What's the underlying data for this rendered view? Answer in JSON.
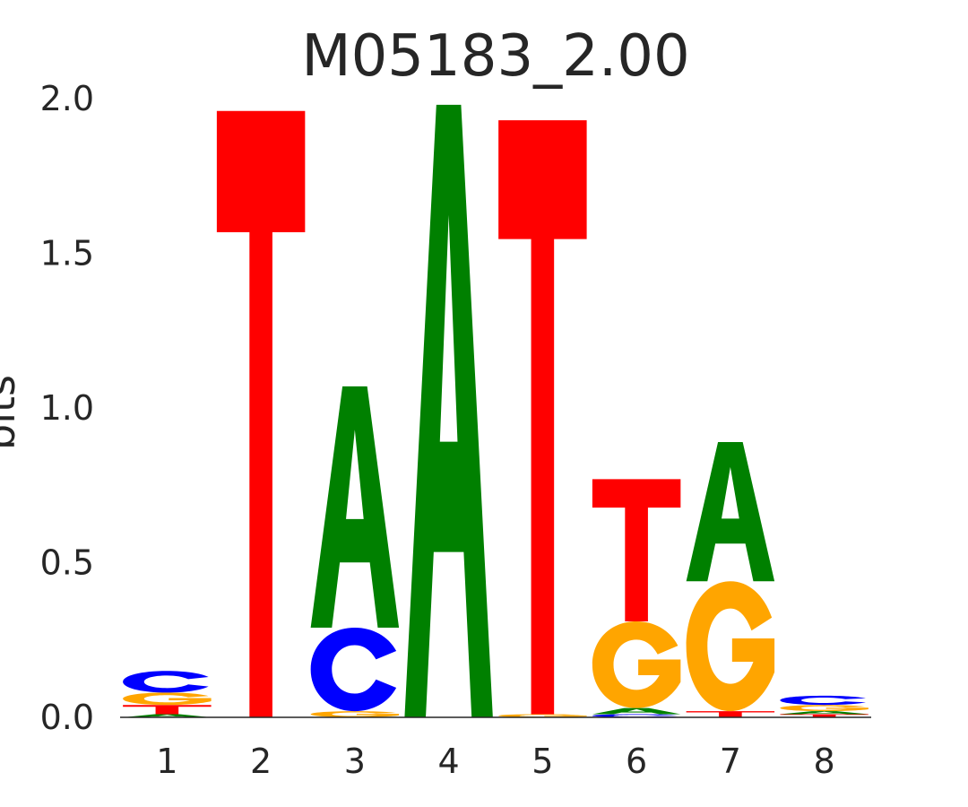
{
  "chart_data": {
    "type": "sequence-logo",
    "title": "M05183_2.00",
    "ylabel": "bits",
    "xlabel": "",
    "ylim": [
      0,
      2
    ],
    "yticks": [
      "0.0",
      "0.5",
      "1.0",
      "1.5",
      "2.0"
    ],
    "grid": false,
    "positions": [
      {
        "label": "1",
        "letters": [
          {
            "base": "A",
            "bits": 0.01
          },
          {
            "base": "T",
            "bits": 0.03
          },
          {
            "base": "G",
            "bits": 0.04
          },
          {
            "base": "C",
            "bits": 0.07
          }
        ]
      },
      {
        "label": "2",
        "letters": [
          {
            "base": "T",
            "bits": 1.96
          }
        ]
      },
      {
        "label": "3",
        "letters": [
          {
            "base": "G",
            "bits": 0.02
          },
          {
            "base": "C",
            "bits": 0.27
          },
          {
            "base": "A",
            "bits": 0.78
          }
        ]
      },
      {
        "label": "4",
        "letters": [
          {
            "base": "A",
            "bits": 1.98
          }
        ]
      },
      {
        "label": "5",
        "letters": [
          {
            "base": "G",
            "bits": 0.01
          },
          {
            "base": "T",
            "bits": 1.92
          }
        ]
      },
      {
        "label": "6",
        "letters": [
          {
            "base": "C",
            "bits": 0.01
          },
          {
            "base": "A",
            "bits": 0.02
          },
          {
            "base": "G",
            "bits": 0.28
          },
          {
            "base": "T",
            "bits": 0.46
          }
        ]
      },
      {
        "label": "7",
        "letters": [
          {
            "base": "T",
            "bits": 0.02
          },
          {
            "base": "G",
            "bits": 0.42
          },
          {
            "base": "A",
            "bits": 0.45
          }
        ]
      },
      {
        "label": "8",
        "letters": [
          {
            "base": "T",
            "bits": 0.01
          },
          {
            "base": "A",
            "bits": 0.01
          },
          {
            "base": "G",
            "bits": 0.02
          },
          {
            "base": "C",
            "bits": 0.03
          }
        ]
      }
    ],
    "colors": {
      "A": "#008000",
      "C": "#0000ff",
      "G": "#ffa500",
      "T": "#ff0000"
    }
  }
}
